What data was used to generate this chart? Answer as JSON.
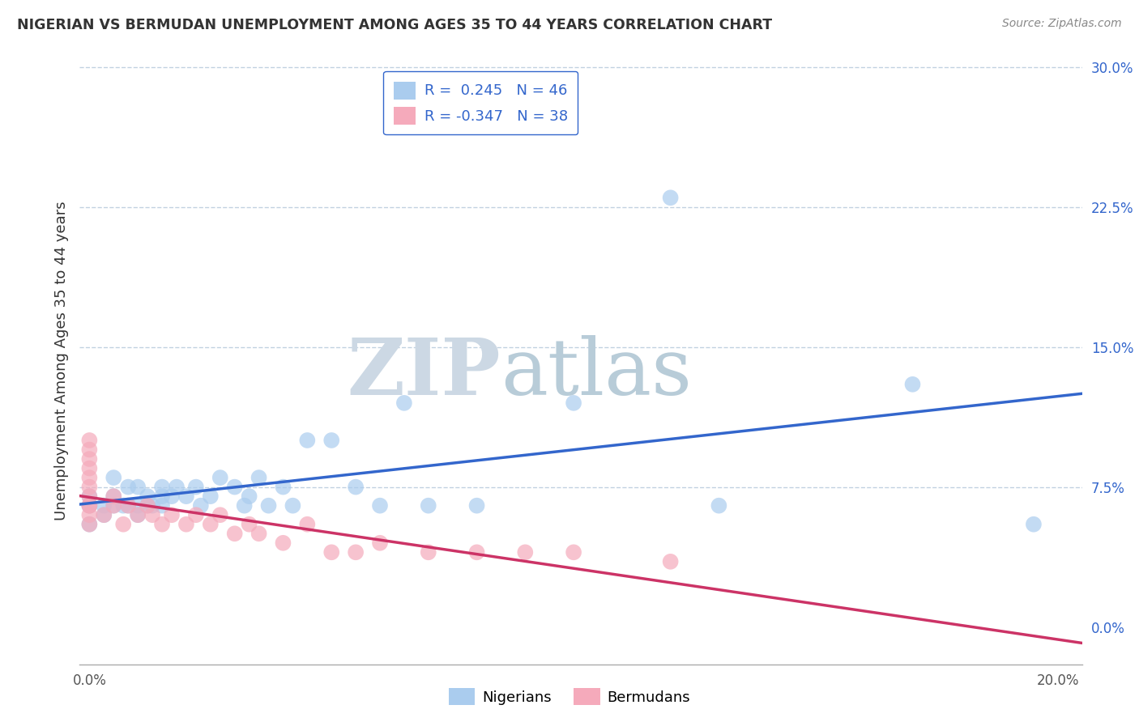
{
  "title": "NIGERIAN VS BERMUDAN UNEMPLOYMENT AMONG AGES 35 TO 44 YEARS CORRELATION CHART",
  "source": "Source: ZipAtlas.com",
  "xlabel": "",
  "ylabel": "Unemployment Among Ages 35 to 44 years",
  "legend_nigerians": "Nigerians",
  "legend_bermudans": "Bermudans",
  "R_nigerian": 0.245,
  "N_nigerian": 46,
  "R_bermudan": -0.347,
  "N_bermudan": 38,
  "xlim": [
    -0.002,
    0.205
  ],
  "ylim": [
    -0.02,
    0.305
  ],
  "xticks": [
    0.0,
    0.2
  ],
  "yticks": [
    0.0,
    0.075,
    0.15,
    0.225,
    0.3
  ],
  "xticklabels": [
    "0.0%",
    "20.0%"
  ],
  "yticklabels": [
    "0.0%",
    "7.5%",
    "15.0%",
    "22.5%",
    "30.0%"
  ],
  "nigerian_scatter_color": "#aaccee",
  "bermudan_scatter_color": "#f5aabb",
  "nigerian_line_color": "#3366cc",
  "bermudan_line_color": "#cc3366",
  "background_color": "#ffffff",
  "grid_color": "#bbccdd",
  "watermark_zip_color": "#c8dde8",
  "watermark_atlas_color": "#c8dde8",
  "nigerian_x": [
    0.0,
    0.0,
    0.0,
    0.003,
    0.003,
    0.005,
    0.005,
    0.005,
    0.007,
    0.008,
    0.008,
    0.01,
    0.01,
    0.01,
    0.012,
    0.012,
    0.013,
    0.015,
    0.015,
    0.015,
    0.017,
    0.018,
    0.02,
    0.022,
    0.023,
    0.025,
    0.027,
    0.03,
    0.032,
    0.033,
    0.035,
    0.037,
    0.04,
    0.042,
    0.045,
    0.05,
    0.055,
    0.06,
    0.065,
    0.07,
    0.08,
    0.1,
    0.12,
    0.13,
    0.17,
    0.195
  ],
  "nigerian_y": [
    0.055,
    0.065,
    0.07,
    0.06,
    0.065,
    0.065,
    0.07,
    0.08,
    0.065,
    0.065,
    0.075,
    0.06,
    0.065,
    0.075,
    0.065,
    0.07,
    0.065,
    0.065,
    0.07,
    0.075,
    0.07,
    0.075,
    0.07,
    0.075,
    0.065,
    0.07,
    0.08,
    0.075,
    0.065,
    0.07,
    0.08,
    0.065,
    0.075,
    0.065,
    0.1,
    0.1,
    0.075,
    0.065,
    0.12,
    0.065,
    0.065,
    0.12,
    0.23,
    0.065,
    0.13,
    0.055
  ],
  "bermudan_x": [
    0.0,
    0.0,
    0.0,
    0.0,
    0.0,
    0.0,
    0.0,
    0.0,
    0.0,
    0.0,
    0.0,
    0.003,
    0.005,
    0.005,
    0.007,
    0.008,
    0.01,
    0.012,
    0.013,
    0.015,
    0.017,
    0.02,
    0.022,
    0.025,
    0.027,
    0.03,
    0.033,
    0.035,
    0.04,
    0.045,
    0.05,
    0.055,
    0.06,
    0.07,
    0.08,
    0.09,
    0.1,
    0.12
  ],
  "bermudan_y": [
    0.065,
    0.07,
    0.075,
    0.08,
    0.085,
    0.09,
    0.095,
    0.1,
    0.055,
    0.06,
    0.065,
    0.06,
    0.065,
    0.07,
    0.055,
    0.065,
    0.06,
    0.065,
    0.06,
    0.055,
    0.06,
    0.055,
    0.06,
    0.055,
    0.06,
    0.05,
    0.055,
    0.05,
    0.045,
    0.055,
    0.04,
    0.04,
    0.045,
    0.04,
    0.04,
    0.04,
    0.04,
    0.035
  ]
}
